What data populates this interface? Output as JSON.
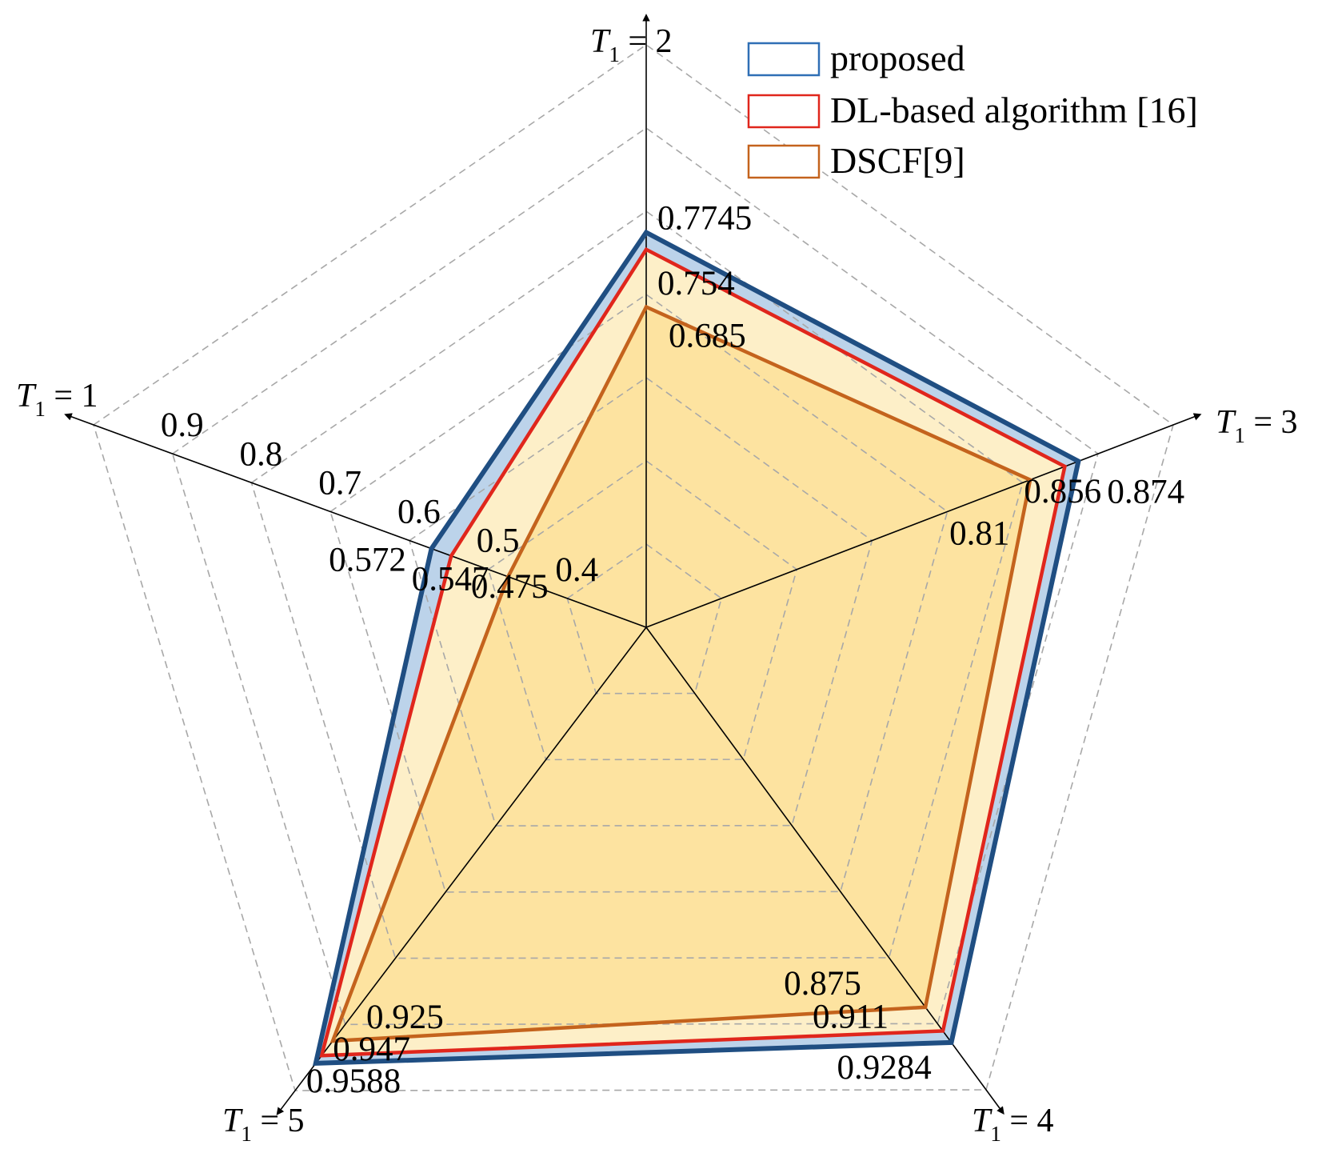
{
  "chart_data": {
    "type": "radar",
    "axes": [
      {
        "name": "T",
        "sub": "1",
        "value": "1"
      },
      {
        "name": "T",
        "sub": "1",
        "value": "2"
      },
      {
        "name": "T",
        "sub": "1",
        "value": "3"
      },
      {
        "name": "T",
        "sub": "1",
        "value": "4"
      },
      {
        "name": "T",
        "sub": "1",
        "value": "5"
      }
    ],
    "range": [
      0.3,
      1.0
    ],
    "ticks": [
      "0.4",
      "0.5",
      "0.6",
      "0.7",
      "0.8",
      "0.9"
    ],
    "grid": true,
    "legend_position": "top-right",
    "series": [
      {
        "name": "proposed",
        "values": [
          0.572,
          0.7745,
          0.874,
          0.9284,
          0.9588
        ],
        "labels": [
          "0.572",
          "0.7745",
          "0.874",
          "0.9284",
          "0.9588"
        ],
        "stroke": "#1f4e82",
        "fill": "#bcd3ea"
      },
      {
        "name": "DL-based algorithm [16]",
        "values": [
          0.547,
          0.754,
          0.856,
          0.911,
          0.947
        ],
        "labels": [
          "0.547",
          "0.754",
          "0.856",
          "0.911",
          "0.947"
        ],
        "stroke": "#e0261c",
        "fill": "#fdefc8"
      },
      {
        "name": "DSCF[9]",
        "values": [
          0.475,
          0.685,
          0.81,
          0.875,
          0.925
        ],
        "labels": [
          "0.475",
          "0.685",
          "0.81",
          "0.875",
          "0.925"
        ],
        "stroke": "#c4631d",
        "fill": "#fde3a0"
      }
    ]
  }
}
